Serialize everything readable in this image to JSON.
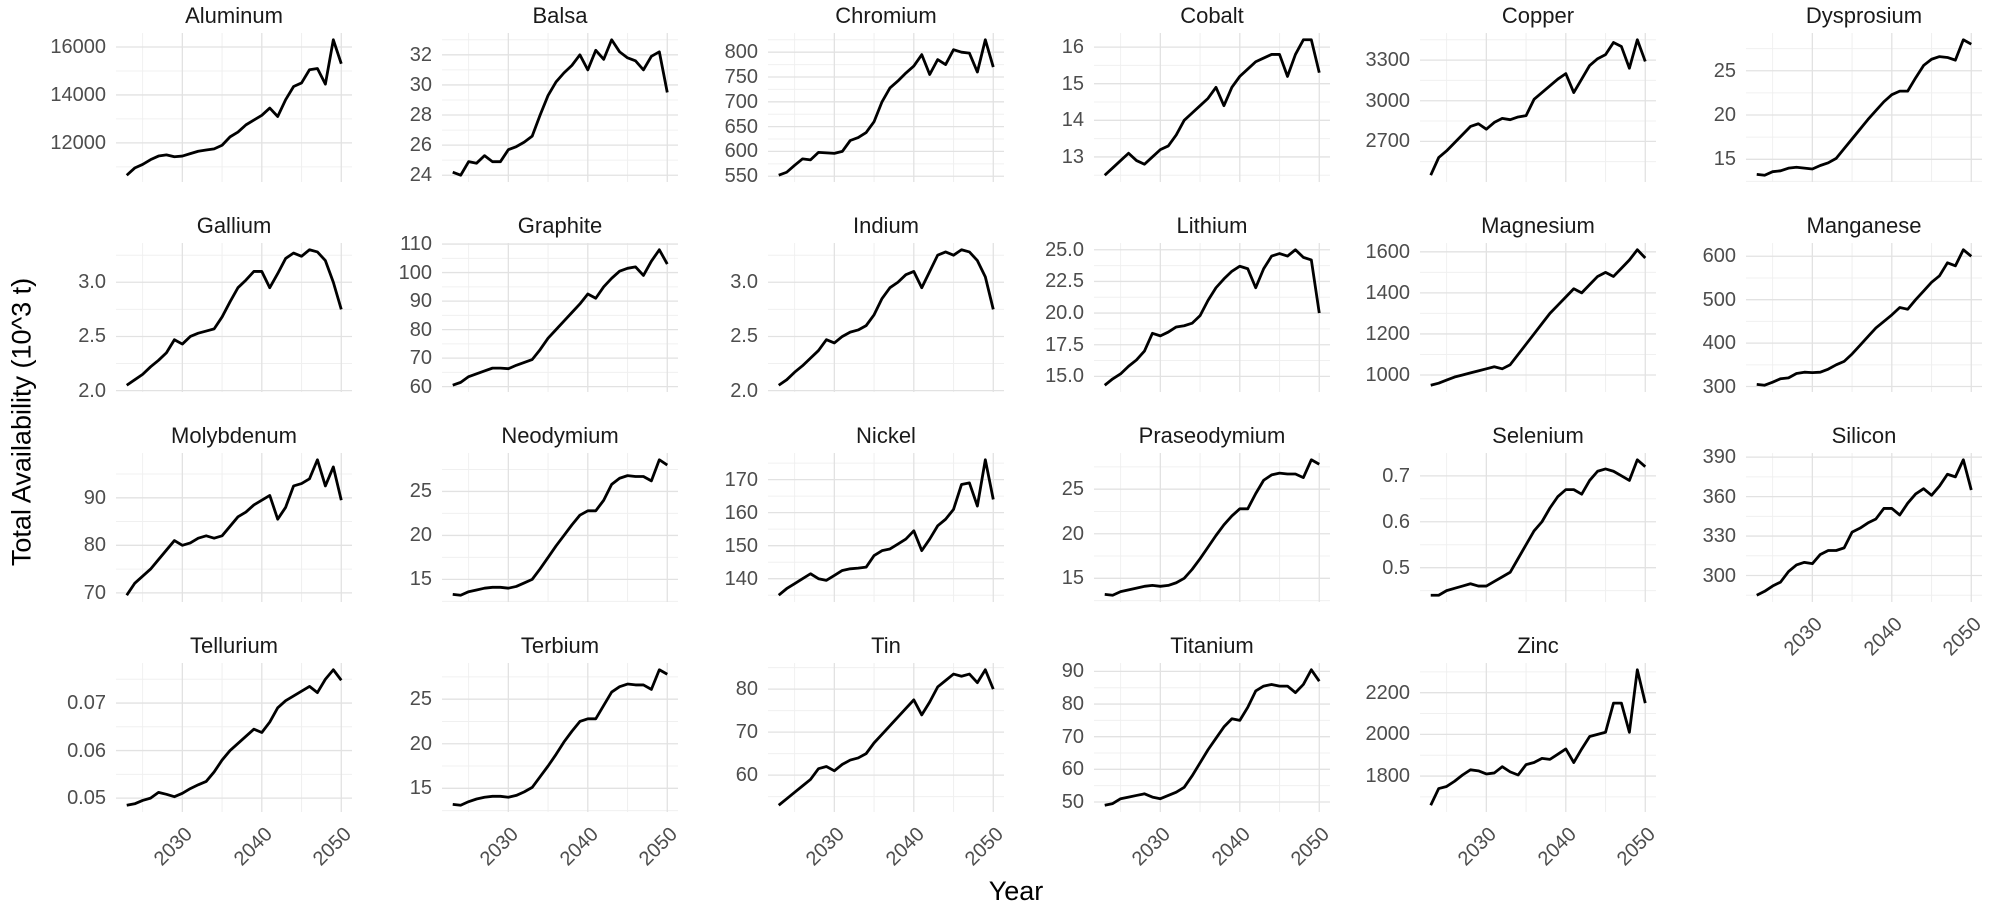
{
  "chart_data": {
    "type": "line",
    "title": "",
    "xlabel": "Year",
    "ylabel": "Total Availability (10^3 t)",
    "legend": "none",
    "grid": true,
    "line_color": "#000000",
    "grid_major_color": "#e2e2e2",
    "grid_minor_color": "#f0f0f0",
    "tick_label_color": "#4d4d4d",
    "x_range": [
      2023,
      2050
    ],
    "x_ticks": {
      "major": [
        2030,
        2040,
        2050
      ],
      "minor": [
        2025,
        2035,
        2045
      ]
    },
    "x_tick_labels": [
      "2030",
      "2040",
      "2050"
    ],
    "x": [
      2023,
      2024,
      2025,
      2026,
      2027,
      2028,
      2029,
      2030,
      2031,
      2032,
      2033,
      2034,
      2035,
      2036,
      2037,
      2038,
      2039,
      2040,
      2041,
      2042,
      2043,
      2044,
      2045,
      2046,
      2047,
      2048,
      2049,
      2050
    ],
    "layout": {
      "rows": 4,
      "cols": 6,
      "free_y": true
    },
    "facets": [
      {
        "name": "Aluminum",
        "y_ticks": [
          12000,
          14000,
          16000
        ],
        "y_tick_labels": [
          "12000",
          "14000",
          "16000"
        ],
        "values": [
          10650,
          10950,
          11100,
          11300,
          11450,
          11500,
          11420,
          11450,
          11550,
          11650,
          11700,
          11750,
          11900,
          12250,
          12450,
          12750,
          12950,
          13150,
          13450,
          13100,
          13800,
          14350,
          14500,
          15050,
          15100,
          14450,
          16300,
          15300
        ]
      },
      {
        "name": "Balsa",
        "y_ticks": [
          24,
          26,
          28,
          30,
          32
        ],
        "y_tick_labels": [
          "24",
          "26",
          "28",
          "30",
          "32"
        ],
        "values": [
          24.2,
          24.0,
          24.9,
          24.8,
          25.3,
          24.9,
          24.9,
          25.7,
          25.9,
          26.2,
          26.6,
          28.0,
          29.3,
          30.2,
          30.8,
          31.3,
          32.0,
          31.0,
          32.3,
          31.7,
          33.0,
          32.2,
          31.8,
          31.6,
          31.0,
          31.9,
          32.2,
          29.5
        ]
      },
      {
        "name": "Chromium",
        "y_ticks": [
          550,
          600,
          650,
          700,
          750,
          800
        ],
        "y_tick_labels": [
          "550",
          "600",
          "650",
          "700",
          "750",
          "800"
        ],
        "values": [
          552,
          558,
          572,
          585,
          583,
          598,
          597,
          596,
          600,
          622,
          628,
          638,
          660,
          700,
          728,
          742,
          758,
          772,
          795,
          755,
          785,
          775,
          805,
          800,
          798,
          760,
          825,
          770
        ]
      },
      {
        "name": "Cobalt",
        "y_ticks": [
          13,
          14,
          15,
          16
        ],
        "y_tick_labels": [
          "13",
          "14",
          "15",
          "16"
        ],
        "values": [
          12.5,
          12.7,
          12.9,
          13.1,
          12.9,
          12.8,
          13.0,
          13.2,
          13.3,
          13.6,
          14.0,
          14.2,
          14.4,
          14.6,
          14.9,
          14.4,
          14.9,
          15.2,
          15.4,
          15.6,
          15.7,
          15.8,
          15.8,
          15.2,
          15.8,
          16.2,
          16.2,
          15.3
        ]
      },
      {
        "name": "Copper",
        "y_ticks": [
          2700,
          3000,
          3300
        ],
        "y_tick_labels": [
          "2700",
          "3000",
          "3300"
        ],
        "values": [
          2450,
          2580,
          2630,
          2690,
          2750,
          2810,
          2830,
          2790,
          2840,
          2870,
          2860,
          2880,
          2890,
          3010,
          3060,
          3110,
          3160,
          3200,
          3060,
          3160,
          3260,
          3310,
          3340,
          3430,
          3400,
          3240,
          3450,
          3290
        ]
      },
      {
        "name": "Dysprosium",
        "y_ticks": [
          15,
          20,
          25
        ],
        "y_tick_labels": [
          "15",
          "20",
          "25"
        ],
        "values": [
          13.3,
          13.2,
          13.6,
          13.7,
          14.0,
          14.1,
          14.0,
          13.9,
          14.3,
          14.6,
          15.1,
          16.2,
          17.3,
          18.4,
          19.5,
          20.5,
          21.5,
          22.3,
          22.7,
          22.7,
          24.2,
          25.6,
          26.3,
          26.6,
          26.5,
          26.2,
          28.5,
          28.0
        ]
      },
      {
        "name": "Gallium",
        "y_ticks": [
          2.0,
          2.5,
          3.0
        ],
        "y_tick_labels": [
          "2.0",
          "2.5",
          "3.0"
        ],
        "values": [
          2.05,
          2.1,
          2.15,
          2.22,
          2.28,
          2.35,
          2.47,
          2.43,
          2.5,
          2.53,
          2.55,
          2.57,
          2.68,
          2.82,
          2.95,
          3.02,
          3.1,
          3.1,
          2.95,
          3.08,
          3.22,
          3.27,
          3.24,
          3.3,
          3.28,
          3.2,
          3.0,
          2.75
        ]
      },
      {
        "name": "Graphite",
        "y_ticks": [
          60,
          70,
          80,
          90,
          100,
          110
        ],
        "y_tick_labels": [
          "60",
          "70",
          "80",
          "90",
          "100",
          "110"
        ],
        "values": [
          60.5,
          61.5,
          63.5,
          64.5,
          65.5,
          66.5,
          66.5,
          66.3,
          67.5,
          68.5,
          69.5,
          73,
          77,
          80,
          83,
          86,
          89,
          92.5,
          91,
          95,
          98,
          100.5,
          101.5,
          102,
          99,
          104,
          108,
          103
        ]
      },
      {
        "name": "Indium",
        "y_ticks": [
          2.0,
          2.5,
          3.0
        ],
        "y_tick_labels": [
          "2.0",
          "2.5",
          "3.0"
        ],
        "values": [
          2.05,
          2.1,
          2.17,
          2.23,
          2.3,
          2.37,
          2.47,
          2.44,
          2.5,
          2.54,
          2.56,
          2.6,
          2.7,
          2.85,
          2.95,
          3.0,
          3.07,
          3.1,
          2.95,
          3.1,
          3.25,
          3.28,
          3.25,
          3.3,
          3.28,
          3.2,
          3.05,
          2.75
        ]
      },
      {
        "name": "Lithium",
        "y_ticks": [
          15.0,
          17.5,
          20.0,
          22.5,
          25.0
        ],
        "y_tick_labels": [
          "15.0",
          "17.5",
          "20.0",
          "22.5",
          "25.0"
        ],
        "values": [
          14.3,
          14.8,
          15.2,
          15.8,
          16.3,
          17.0,
          18.4,
          18.2,
          18.5,
          18.9,
          19.0,
          19.2,
          19.8,
          21.0,
          22.0,
          22.7,
          23.3,
          23.7,
          23.5,
          22.0,
          23.5,
          24.5,
          24.7,
          24.5,
          25.0,
          24.4,
          24.2,
          20.0
        ]
      },
      {
        "name": "Magnesium",
        "y_ticks": [
          1000,
          1200,
          1400,
          1600
        ],
        "y_tick_labels": [
          "1000",
          "1200",
          "1400",
          "1600"
        ],
        "values": [
          950,
          960,
          975,
          990,
          1000,
          1010,
          1020,
          1030,
          1040,
          1030,
          1050,
          1100,
          1150,
          1200,
          1250,
          1300,
          1340,
          1380,
          1420,
          1400,
          1440,
          1480,
          1500,
          1480,
          1520,
          1560,
          1610,
          1570
        ]
      },
      {
        "name": "Manganese",
        "y_ticks": [
          300,
          400,
          500,
          600
        ],
        "y_tick_labels": [
          "300",
          "400",
          "500",
          "600"
        ],
        "values": [
          305,
          303,
          310,
          318,
          320,
          330,
          333,
          332,
          333,
          340,
          350,
          358,
          375,
          395,
          415,
          435,
          450,
          465,
          482,
          478,
          500,
          520,
          540,
          555,
          585,
          578,
          615,
          600
        ]
      },
      {
        "name": "Molybdenum",
        "y_ticks": [
          70,
          80,
          90
        ],
        "y_tick_labels": [
          "70",
          "80",
          "90"
        ],
        "values": [
          69.5,
          72,
          73.5,
          75,
          77,
          79,
          81,
          80,
          80.5,
          81.5,
          82,
          81.5,
          82,
          84,
          86,
          87,
          88.5,
          89.5,
          90.5,
          85.5,
          88,
          92.5,
          93,
          94,
          98,
          92.5,
          96.5,
          89.5
        ]
      },
      {
        "name": "Neodymium",
        "y_ticks": [
          15,
          20,
          25
        ],
        "y_tick_labels": [
          "15",
          "20",
          "25"
        ],
        "values": [
          13.3,
          13.2,
          13.6,
          13.8,
          14.0,
          14.1,
          14.1,
          14.0,
          14.2,
          14.6,
          15.0,
          16.2,
          17.5,
          18.8,
          20.0,
          21.2,
          22.3,
          22.8,
          22.8,
          24.0,
          25.8,
          26.5,
          26.8,
          26.7,
          26.7,
          26.2,
          28.6,
          28.0
        ]
      },
      {
        "name": "Nickel",
        "y_ticks": [
          140,
          150,
          160,
          170
        ],
        "y_tick_labels": [
          "140",
          "150",
          "160",
          "170"
        ],
        "values": [
          135,
          137,
          138.5,
          140,
          141.5,
          140,
          139.5,
          141,
          142.5,
          143,
          143.2,
          143.5,
          147,
          148.5,
          149,
          150.5,
          152,
          154.5,
          148.5,
          152,
          156,
          158,
          161,
          168.5,
          169,
          162,
          176,
          164
        ]
      },
      {
        "name": "Praseodymium",
        "y_ticks": [
          15,
          20,
          25
        ],
        "y_tick_labels": [
          "15",
          "20",
          "25"
        ],
        "values": [
          13.2,
          13.1,
          13.5,
          13.7,
          13.9,
          14.1,
          14.2,
          14.1,
          14.2,
          14.5,
          15.0,
          16.0,
          17.2,
          18.5,
          19.8,
          21.0,
          22.0,
          22.8,
          22.8,
          24.5,
          26.0,
          26.6,
          26.8,
          26.7,
          26.7,
          26.3,
          28.3,
          27.8
        ]
      },
      {
        "name": "Selenium",
        "y_ticks": [
          0.5,
          0.6,
          0.7
        ],
        "y_tick_labels": [
          "0.5",
          "0.6",
          "0.7"
        ],
        "values": [
          0.44,
          0.44,
          0.45,
          0.455,
          0.46,
          0.465,
          0.46,
          0.46,
          0.47,
          0.48,
          0.49,
          0.52,
          0.55,
          0.58,
          0.6,
          0.63,
          0.655,
          0.67,
          0.67,
          0.66,
          0.69,
          0.71,
          0.715,
          0.71,
          0.7,
          0.69,
          0.735,
          0.72
        ]
      },
      {
        "name": "Silicon",
        "y_ticks": [
          300,
          330,
          360,
          390
        ],
        "y_tick_labels": [
          "300",
          "330",
          "360",
          "390"
        ],
        "values": [
          285,
          288,
          292,
          295,
          303,
          308,
          310,
          309,
          316,
          319,
          319,
          321,
          333,
          336,
          340,
          343,
          351,
          351,
          346,
          355,
          362,
          366,
          361,
          368,
          377,
          375,
          388,
          365
        ]
      },
      {
        "name": "Tellurium",
        "y_ticks": [
          0.05,
          0.06,
          0.07
        ],
        "y_tick_labels": [
          "0.05",
          "0.06",
          "0.07"
        ],
        "values": [
          0.0485,
          0.0488,
          0.0495,
          0.05,
          0.0512,
          0.0508,
          0.0503,
          0.051,
          0.052,
          0.0528,
          0.0535,
          0.0555,
          0.058,
          0.06,
          0.0615,
          0.063,
          0.0645,
          0.0638,
          0.066,
          0.069,
          0.0705,
          0.0715,
          0.0725,
          0.0735,
          0.0722,
          0.075,
          0.077,
          0.0748
        ]
      },
      {
        "name": "Terbium",
        "y_ticks": [
          15,
          20,
          25
        ],
        "y_tick_labels": [
          "15",
          "20",
          "25"
        ],
        "values": [
          13.2,
          13.1,
          13.5,
          13.8,
          14.0,
          14.1,
          14.1,
          14.0,
          14.2,
          14.6,
          15.1,
          16.3,
          17.5,
          18.8,
          20.2,
          21.4,
          22.5,
          22.8,
          22.8,
          24.3,
          25.8,
          26.4,
          26.7,
          26.6,
          26.6,
          26.1,
          28.3,
          27.8
        ]
      },
      {
        "name": "Tin",
        "y_ticks": [
          60,
          70,
          80
        ],
        "y_tick_labels": [
          "60",
          "70",
          "80"
        ],
        "values": [
          53,
          54.5,
          56,
          57.5,
          59,
          61.5,
          62,
          61,
          62.5,
          63.5,
          64,
          65,
          67.5,
          69.5,
          71.5,
          73.5,
          75.5,
          77.5,
          74,
          77,
          80.5,
          82,
          83.5,
          83,
          83.5,
          81.5,
          84.5,
          80
        ]
      },
      {
        "name": "Titanium",
        "y_ticks": [
          50,
          60,
          70,
          80,
          90
        ],
        "y_tick_labels": [
          "50",
          "60",
          "70",
          "80",
          "90"
        ],
        "values": [
          49,
          49.5,
          51,
          51.5,
          52,
          52.5,
          51.5,
          51,
          52,
          53,
          54.5,
          58,
          62,
          66,
          69.5,
          73,
          75.5,
          75,
          79,
          84,
          85.5,
          86,
          85.5,
          85.5,
          83.5,
          86,
          90.5,
          87
        ]
      },
      {
        "name": "Zinc",
        "y_ticks": [
          1800,
          2000,
          2200
        ],
        "y_tick_labels": [
          "1800",
          "2000",
          "2200"
        ],
        "values": [
          1660,
          1740,
          1750,
          1775,
          1805,
          1830,
          1825,
          1810,
          1815,
          1845,
          1820,
          1805,
          1855,
          1865,
          1885,
          1880,
          1905,
          1930,
          1865,
          1930,
          1990,
          2000,
          2010,
          2150,
          2150,
          2010,
          2310,
          2150
        ]
      }
    ]
  }
}
